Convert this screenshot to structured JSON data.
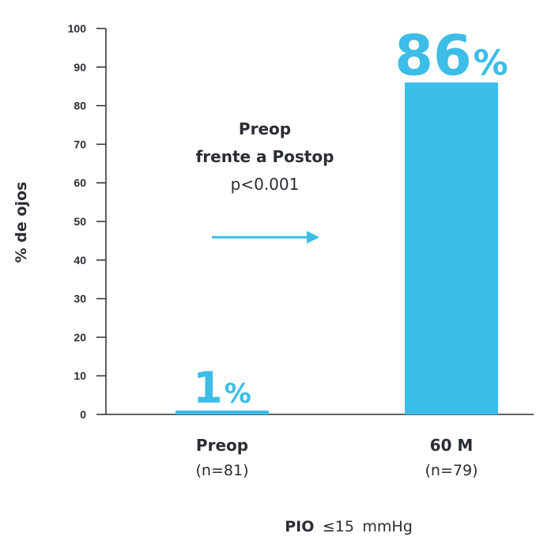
{
  "chart_data": {
    "type": "bar",
    "ylabel": "% de ojos",
    "ylim": [
      0,
      100
    ],
    "yticks": [
      0,
      10,
      20,
      30,
      40,
      50,
      60,
      70,
      80,
      90,
      100
    ],
    "categories": [
      "Preop",
      "60 M"
    ],
    "category_sublabels": [
      "(n=81)",
      "(n=79)"
    ],
    "values": [
      1,
      86
    ],
    "value_labels": [
      {
        "number": "1",
        "unit": "%"
      },
      {
        "number": "86",
        "unit": "%"
      }
    ],
    "bar_color": "#3bbde8",
    "axis_color": "#2a2d34",
    "grid": false,
    "annotation": {
      "line1": "Preop",
      "line2": "frente a Postop",
      "line3": "p<0.001"
    },
    "footer": {
      "bold": "PIO",
      "symbol_value": "≤15",
      "unit": "mmHg"
    }
  }
}
